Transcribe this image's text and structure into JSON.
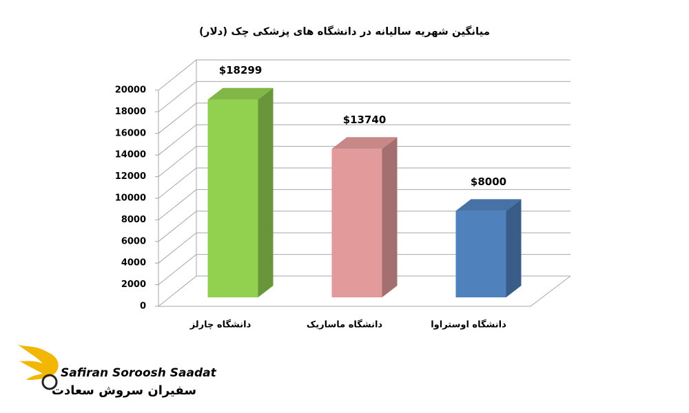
{
  "chart_data": {
    "type": "bar3d",
    "title": "میانگین شهریه سالیانه در دانشگاه های پزشکی چک (دلار)",
    "categories": [
      "دانشگاه چارلز",
      "دانشگاه ماساریک",
      "دانشگاه اوستراوا"
    ],
    "values": [
      18299,
      13740,
      8000
    ],
    "value_labels": [
      "$18299",
      "$13740",
      "$8000"
    ],
    "colors": [
      "#92d050",
      "#e39a9a",
      "#4f81bd"
    ],
    "ylim": [
      0,
      20000
    ],
    "yticks": [
      0,
      2000,
      4000,
      6000,
      8000,
      10000,
      12000,
      14000,
      16000,
      18000,
      20000
    ],
    "grid": true
  },
  "logo": {
    "name_en": "Safiran Soroosh Saadat",
    "name_fa": "سفیران سروش سعادت"
  }
}
